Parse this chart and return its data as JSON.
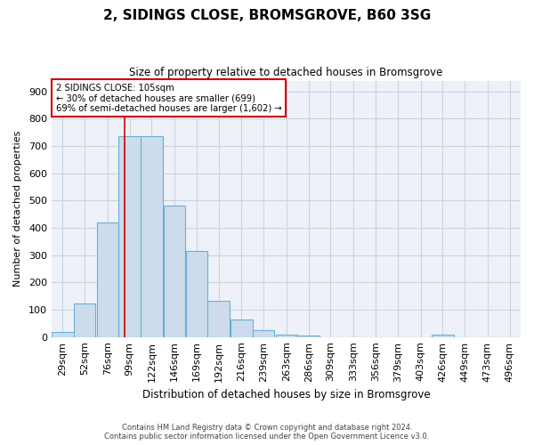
{
  "title": "2, SIDINGS CLOSE, BROMSGROVE, B60 3SG",
  "subtitle": "Size of property relative to detached houses in Bromsgrove",
  "xlabel": "Distribution of detached houses by size in Bromsgrove",
  "ylabel": "Number of detached properties",
  "bar_color": "#cddcec",
  "bar_edge_color": "#6baed6",
  "grid_color": "#c8d4e3",
  "background_color": "#eef2f8",
  "annotation_box_color": "#cc0000",
  "property_line_color": "#cc0000",
  "property_value": 105,
  "annotation_title": "2 SIDINGS CLOSE: 105sqm",
  "annotation_line2": "← 30% of detached houses are smaller (699)",
  "annotation_line3": "69% of semi-detached houses are larger (1,602) →",
  "bin_labels": [
    "29sqm",
    "52sqm",
    "76sqm",
    "99sqm",
    "122sqm",
    "146sqm",
    "169sqm",
    "192sqm",
    "216sqm",
    "239sqm",
    "263sqm",
    "286sqm",
    "309sqm",
    "333sqm",
    "356sqm",
    "379sqm",
    "403sqm",
    "426sqm",
    "449sqm",
    "473sqm",
    "496sqm"
  ],
  "bin_left_edges": [
    29,
    52,
    76,
    99,
    122,
    146,
    169,
    192,
    216,
    239,
    263,
    286,
    309,
    333,
    356,
    379,
    403,
    426,
    449,
    473,
    496
  ],
  "bin_width": 23,
  "bar_heights": [
    20,
    122,
    420,
    735,
    735,
    483,
    315,
    133,
    65,
    25,
    10,
    7,
    0,
    0,
    0,
    0,
    0,
    8,
    0,
    0,
    0
  ],
  "ylim": [
    0,
    940
  ],
  "yticks": [
    0,
    100,
    200,
    300,
    400,
    500,
    600,
    700,
    800,
    900
  ],
  "footer_line1": "Contains HM Land Registry data © Crown copyright and database right 2024.",
  "footer_line2": "Contains public sector information licensed under the Open Government Licence v3.0."
}
